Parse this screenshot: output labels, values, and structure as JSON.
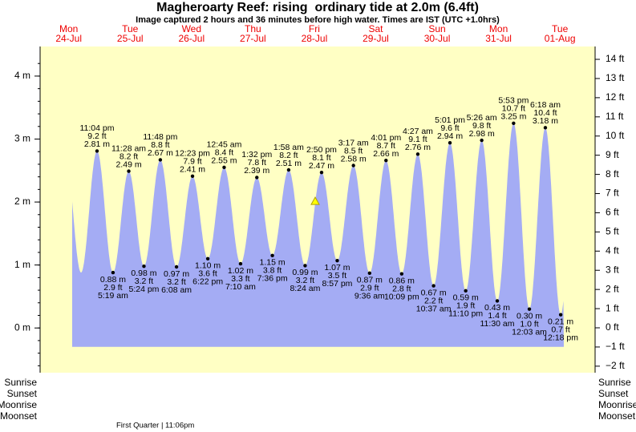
{
  "chart_data": {
    "type": "area",
    "title": "Magheroarty Reef: rising  ordinary tide at 2.0m (6.4ft)",
    "subtitle": "Image captured 2 hours and 36 minutes before high water. Times are IST (UTC +1.0hrs)",
    "days": [
      {
        "weekday": "Mon",
        "date": "24-Jul"
      },
      {
        "weekday": "Tue",
        "date": "25-Jul"
      },
      {
        "weekday": "Wed",
        "date": "26-Jul"
      },
      {
        "weekday": "Thu",
        "date": "27-Jul"
      },
      {
        "weekday": "Fri",
        "date": "28-Jul"
      },
      {
        "weekday": "Sat",
        "date": "29-Jul"
      },
      {
        "weekday": "Sun",
        "date": "30-Jul"
      },
      {
        "weekday": "Mon",
        "date": "31-Jul"
      },
      {
        "weekday": "Tue",
        "date": "01-Aug"
      }
    ],
    "x": [
      "11:04 pm",
      "5:19 am",
      "11:28 am",
      "5:24 pm",
      "11:48 pm",
      "6:08 am",
      "12:23 pm",
      "6:22 pm",
      "12:45 am",
      "7:10 am",
      "1:32 pm",
      "7:36 pm",
      "1:58 am",
      "8:24 am",
      "2:50 pm",
      "8:57 pm",
      "3:17 am",
      "9:36 am",
      "4:01 pm",
      "10:09 pm",
      "4:27 am",
      "10:37 am",
      "5:01 pm",
      "11:10 pm",
      "5:26 am",
      "11:30 am",
      "5:53 pm",
      "12:03 am",
      "6:18 am",
      "12:18 pm"
    ],
    "values": [
      2.81,
      0.88,
      2.49,
      0.98,
      2.67,
      0.97,
      2.41,
      1.1,
      2.55,
      1.02,
      2.39,
      1.15,
      2.51,
      0.99,
      2.47,
      1.07,
      2.58,
      0.87,
      2.66,
      0.86,
      2.76,
      0.67,
      2.94,
      0.59,
      2.98,
      0.43,
      3.25,
      0.3,
      3.18,
      0.21
    ],
    "value_labels": [
      "2.81 m",
      "0.88 m",
      "2.49 m",
      "0.98 m",
      "2.67 m",
      "0.97 m",
      "2.41 m",
      "1.10 m",
      "2.55 m",
      "1.02 m",
      "2.39 m",
      "1.15 m",
      "2.51 m",
      "0.99 m",
      "2.47 m",
      "1.07 m",
      "2.58 m",
      "0.87 m",
      "2.66 m",
      "0.86 m",
      "2.76 m",
      "0.67 m",
      "2.94 m",
      "0.59 m",
      "2.98 m",
      "0.43 m",
      "3.25 m",
      "0.30 m",
      "3.18 m",
      "0.21 m"
    ],
    "ft_labels": [
      "9.2 ft",
      "2.9 ft",
      "8.2 ft",
      "3.2 ft",
      "8.8 ft",
      "3.2 ft",
      "7.9 ft",
      "3.6 ft",
      "8.4 ft",
      "3.3 ft",
      "7.8 ft",
      "3.8 ft",
      "8.2 ft",
      "3.2 ft",
      "8.1 ft",
      "3.5 ft",
      "8.5 ft",
      "2.9 ft",
      "8.7 ft",
      "2.8 ft",
      "9.1 ft",
      "2.2 ft",
      "9.6 ft",
      "1.9 ft",
      "9.8 ft",
      "1.4 ft",
      "10.7 ft",
      "1.0 ft",
      "10.4 ft",
      "0.7 ft"
    ],
    "color": "#a4acf4",
    "now": {
      "level": 2.0
    },
    "ylim": [
      -0.71,
      4.47
    ],
    "yticks": [
      {
        "value": 0,
        "label": "0 m"
      },
      {
        "value": 1,
        "label": "1 m"
      },
      {
        "value": 2,
        "label": "2 m"
      },
      {
        "value": 3,
        "label": "3 m"
      },
      {
        "value": 4,
        "label": "4 m"
      }
    ],
    "y2lim": [
      -2.34,
      14.67
    ],
    "y2ticks": [
      {
        "value": -2,
        "label": "−2 ft"
      },
      {
        "value": -1,
        "label": "−1 ft"
      },
      {
        "value": 0,
        "label": "0 ft"
      },
      {
        "value": 1,
        "label": "1 ft"
      },
      {
        "value": 2,
        "label": "2 ft"
      },
      {
        "value": 3,
        "label": "3 ft"
      },
      {
        "value": 4,
        "label": "4 ft"
      },
      {
        "value": 5,
        "label": "5 ft"
      },
      {
        "value": 6,
        "label": "6 ft"
      },
      {
        "value": 7,
        "label": "7 ft"
      },
      {
        "value": 8,
        "label": "8 ft"
      },
      {
        "value": 9,
        "label": "9 ft"
      },
      {
        "value": 10,
        "label": "10 ft"
      },
      {
        "value": 11,
        "label": "11 ft"
      },
      {
        "value": 12,
        "label": "12 ft"
      },
      {
        "value": 13,
        "label": "13 ft"
      },
      {
        "value": 14,
        "label": "14 ft"
      }
    ],
    "row_labels": [
      "Sunrise",
      "Sunset",
      "Moonrise",
      "Moonset"
    ],
    "moon_note": "First Quarter | 11:06pm"
  }
}
